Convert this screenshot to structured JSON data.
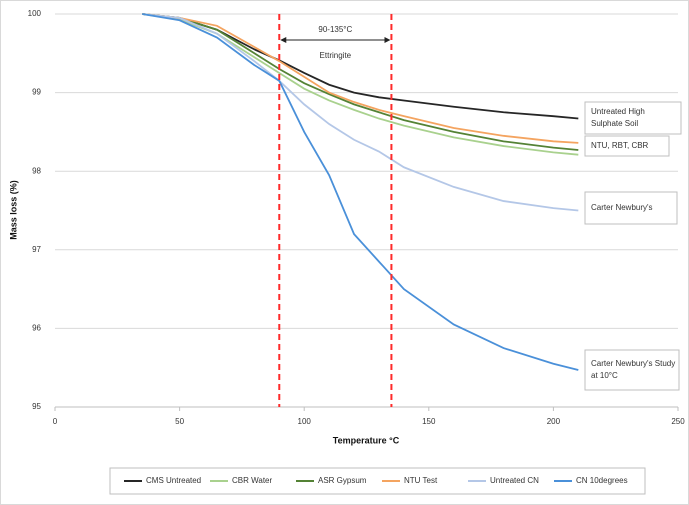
{
  "chart_data": {
    "type": "line",
    "y_label": "Mass loss (%)",
    "x_label": "Temperature °C",
    "xlim": [
      0,
      250
    ],
    "xticks": [
      0,
      50,
      100,
      150,
      200,
      250
    ],
    "ylim": [
      95,
      100
    ],
    "yticks": [
      95,
      96,
      97,
      98,
      99,
      100
    ],
    "grid": true,
    "x": [
      35,
      50,
      65,
      80,
      90,
      100,
      110,
      120,
      130,
      140,
      160,
      180,
      200,
      210
    ],
    "series": [
      {
        "name": "CMS Untreated",
        "color": "#262626",
        "values": [
          100,
          99.95,
          99.8,
          99.55,
          99.41,
          99.25,
          99.1,
          99.0,
          98.94,
          98.9,
          98.82,
          98.75,
          98.7,
          98.67
        ]
      },
      {
        "name": "CBR Water",
        "color": "#a9d18e",
        "values": [
          100,
          99.93,
          99.75,
          99.45,
          99.25,
          99.05,
          98.9,
          98.78,
          98.67,
          98.58,
          98.43,
          98.32,
          98.24,
          98.21
        ]
      },
      {
        "name": "ASR Gypsum",
        "color": "#548235",
        "values": [
          100,
          99.95,
          99.8,
          99.5,
          99.3,
          99.12,
          98.98,
          98.85,
          98.75,
          98.65,
          98.5,
          98.38,
          98.3,
          98.27
        ]
      },
      {
        "name": "NTU Test",
        "color": "#f4a460",
        "values": [
          100,
          99.95,
          99.85,
          99.58,
          99.4,
          99.2,
          99.0,
          98.88,
          98.78,
          98.7,
          98.55,
          98.45,
          98.38,
          98.36
        ]
      },
      {
        "name": "Untreated CN",
        "color": "#b4c7e7",
        "values": [
          100,
          99.95,
          99.75,
          99.4,
          99.15,
          98.85,
          98.6,
          98.4,
          98.25,
          98.05,
          97.8,
          97.62,
          97.53,
          97.5
        ]
      },
      {
        "name": "CN 10degrees",
        "color": "#4a90d9",
        "values": [
          100,
          99.92,
          99.7,
          99.35,
          99.15,
          98.5,
          97.95,
          97.2,
          96.85,
          96.5,
          96.05,
          95.75,
          95.55,
          95.47
        ]
      }
    ],
    "vlines": {
      "color": "#ff2a2a",
      "values": [
        90,
        135
      ]
    },
    "range_label": "90-135°C",
    "range_name": "Ettringite",
    "annotations": [
      "Untreated High Sulphate Soil",
      "NTU, RBT, CBR",
      "Carter Newbury's",
      "Carter Newbury's Study at 10°C"
    ]
  }
}
